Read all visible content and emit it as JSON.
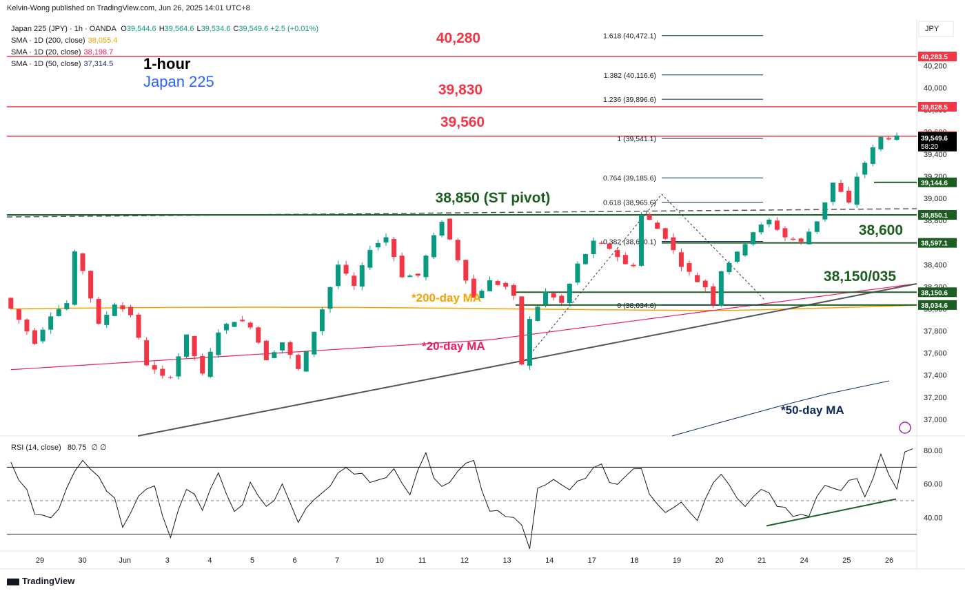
{
  "header": {
    "publisher": "Kelvin-Wong published on TradingView.com, Jun 26, 2025 14:01 UTC+8"
  },
  "legend": {
    "symbol": "Japan 225 (JPY) · 1h · OANDA",
    "ohlc": [
      {
        "k": "O",
        "v": "39,544.6"
      },
      {
        "k": "H",
        "v": "39,564.6"
      },
      {
        "k": "L",
        "v": "39,534.6"
      },
      {
        "k": "C",
        "v": "39,549.6"
      }
    ],
    "change": "+2.5 (+0.01%)",
    "sma": [
      {
        "label": "SMA · 1D (200, close)",
        "value": "38,055.4",
        "color": "#f4a300"
      },
      {
        "label": "SMA · 1D (20, close)",
        "value": "38,198.7",
        "color": "#e91e63"
      },
      {
        "label": "SMA · 1D (50, close)",
        "value": "37,314.5",
        "color": "#0d2b5e"
      }
    ]
  },
  "title": {
    "timeframe": "1-hour",
    "name": "Japan 225"
  },
  "currency": "JPY",
  "rsi_legend": {
    "label": "RSI (14, close)",
    "value": "80.75",
    "extra": "∅ ∅"
  },
  "brand": "TradingView",
  "colors": {
    "up": "#089981",
    "down": "#f23645",
    "red_level": "#f23645",
    "green_level": "#1b5e20",
    "ma200": "#f4a300",
    "ma20": "#e91e63",
    "ma50": "#0d2b5e",
    "fib": "#0d2b5e"
  },
  "chart_data": [
    {
      "type": "candlestick",
      "title": "Japan 225 (JPY) · 1h · OANDA",
      "x_tick_labels": [
        "29",
        "30",
        "Jun",
        "3",
        "4",
        "5",
        "6",
        "7",
        "10",
        "11",
        "12",
        "13",
        "14",
        "17",
        "18",
        "19",
        "20",
        "21",
        "24",
        "25",
        "26"
      ],
      "y_ticks": [
        37000,
        37200,
        37400,
        37600,
        37800,
        38000,
        38200,
        38400,
        38600,
        38800,
        39000,
        39200,
        39400,
        39600,
        39800,
        40000,
        40200
      ],
      "y_tick_labels": [
        "37,000",
        "37,200",
        "37,400",
        "37,600",
        "37,800",
        "38,000",
        "38,200",
        "38,400",
        "38,600",
        "38,800",
        "39,000",
        "39,200",
        "39,400",
        "39,600",
        "39,800",
        "40,000",
        "40,200"
      ],
      "ylim": [
        36850,
        40620
      ],
      "price_path_approx": [
        [
          0,
          38100
        ],
        [
          2,
          37900
        ],
        [
          4,
          37700
        ],
        [
          6,
          37950
        ],
        [
          8,
          38050
        ],
        [
          9,
          38500
        ],
        [
          10,
          38350
        ],
        [
          12,
          37850
        ],
        [
          14,
          38050
        ],
        [
          16,
          37950
        ],
        [
          18,
          37500
        ],
        [
          20,
          37380
        ],
        [
          21,
          37400
        ],
        [
          23,
          37750
        ],
        [
          25,
          37400
        ],
        [
          27,
          37800
        ],
        [
          29,
          37900
        ],
        [
          31,
          37850
        ],
        [
          33,
          37550
        ],
        [
          35,
          37700
        ],
        [
          37,
          37450
        ],
        [
          38,
          37600
        ],
        [
          40,
          38000
        ],
        [
          42,
          38400
        ],
        [
          44,
          38200
        ],
        [
          46,
          38550
        ],
        [
          48,
          38650
        ],
        [
          50,
          38300
        ],
        [
          52,
          38300
        ],
        [
          54,
          38650
        ],
        [
          55,
          38800
        ],
        [
          57,
          38450
        ],
        [
          59,
          38100
        ],
        [
          61,
          38250
        ],
        [
          63,
          38200
        ],
        [
          64,
          38100
        ],
        [
          65,
          37500
        ],
        [
          66,
          37900
        ],
        [
          68,
          38150
        ],
        [
          70,
          38050
        ],
        [
          72,
          38400
        ],
        [
          74,
          38600
        ],
        [
          76,
          38550
        ],
        [
          78,
          38400
        ],
        [
          79,
          38400
        ],
        [
          80,
          38850
        ],
        [
          81,
          38800
        ],
        [
          83,
          38650
        ],
        [
          85,
          38400
        ],
        [
          87,
          38250
        ],
        [
          88,
          38200
        ],
        [
          89,
          38050
        ],
        [
          90,
          38350
        ],
        [
          92,
          38500
        ],
        [
          94,
          38700
        ],
        [
          96,
          38800
        ],
        [
          98,
          38650
        ],
        [
          100,
          38600
        ],
        [
          102,
          38800
        ],
        [
          104,
          39140
        ],
        [
          105,
          39050
        ],
        [
          106,
          38950
        ],
        [
          107,
          39200
        ],
        [
          109,
          39450
        ],
        [
          110,
          39550
        ]
      ],
      "horizontal_levels": [
        {
          "label": "40,280",
          "value": 40283.5,
          "axis_label": "40,283.5",
          "color": "#f23645"
        },
        {
          "label": "39,830",
          "value": 39828.5,
          "axis_label": "39,828.5",
          "color": "#f23645"
        },
        {
          "label": "39,560",
          "value": 39562.0,
          "axis_label": "39,562.0",
          "color": "#f23645"
        },
        {
          "label": "38,850 (ST pivot)",
          "value": 38850.1,
          "axis_label": "38,850.1",
          "color": "#1b5e20"
        },
        {
          "label": "38,600",
          "value": 38597.1,
          "axis_label": "38,597.1",
          "color": "#1b5e20"
        },
        {
          "label": "38,150/035",
          "value": 38150.6,
          "axis_label": "38,150.6",
          "color": "#1b5e20"
        },
        {
          "label": "",
          "value": 38034.6,
          "axis_label": "38,034.6",
          "color": "#1b5e20"
        }
      ],
      "last_price": {
        "value": 39549.6,
        "axis_label": "39,549.6",
        "countdown": "58:20"
      },
      "minor_axis_label": {
        "value": 39144.6,
        "axis_label": "39,144.6"
      },
      "fib_levels": [
        {
          "label": "1.618 (40,472.1)",
          "value": 40472.1
        },
        {
          "label": "1.382 (40,116.6)",
          "value": 40116.6
        },
        {
          "label": "1.236 (39,896.6)",
          "value": 39896.6
        },
        {
          "label": "1 (39,541.1)",
          "value": 39541.1
        },
        {
          "label": "0.764 (39,185.6)",
          "value": 39185.6
        },
        {
          "label": "0.618 (38,965.6)",
          "value": 38965.6
        },
        {
          "label": "0.382 (38,610.1)",
          "value": 38610.1
        },
        {
          "label": "0 (38,034.6)",
          "value": 38034.6
        }
      ],
      "ma_labels": [
        {
          "label": "*200-day MA",
          "color": "#f4a300"
        },
        {
          "label": "*20-day MA",
          "color": "#e91e63"
        },
        {
          "label": "*50-day MA",
          "color": "#0d2b5e"
        }
      ]
    },
    {
      "type": "line",
      "title": "RSI (14, close)",
      "y_ticks": [
        40,
        60,
        80
      ],
      "y_tick_labels": [
        "40.00",
        "60.00",
        "80.00"
      ],
      "ylim": [
        20,
        87
      ],
      "bands": [
        30,
        50,
        70
      ],
      "rsi_path_approx": [
        [
          0,
          72
        ],
        [
          3,
          45
        ],
        [
          6,
          43
        ],
        [
          9,
          78
        ],
        [
          11,
          67
        ],
        [
          14,
          38
        ],
        [
          16,
          55
        ],
        [
          18,
          58
        ],
        [
          20,
          30
        ],
        [
          22,
          60
        ],
        [
          24,
          48
        ],
        [
          26,
          65
        ],
        [
          28,
          40
        ],
        [
          30,
          58
        ],
        [
          32,
          45
        ],
        [
          34,
          63
        ],
        [
          36,
          37
        ],
        [
          38,
          50
        ],
        [
          40,
          55
        ],
        [
          42,
          72
        ],
        [
          44,
          65
        ],
        [
          46,
          60
        ],
        [
          48,
          70
        ],
        [
          50,
          55
        ],
        [
          52,
          75
        ],
        [
          54,
          60
        ],
        [
          56,
          65
        ],
        [
          58,
          72
        ],
        [
          60,
          45
        ],
        [
          62,
          40
        ],
        [
          64,
          35
        ],
        [
          65,
          23
        ],
        [
          66,
          55
        ],
        [
          68,
          60
        ],
        [
          70,
          55
        ],
        [
          72,
          67
        ],
        [
          74,
          68
        ],
        [
          76,
          60
        ],
        [
          78,
          70
        ],
        [
          79,
          72
        ],
        [
          80,
          55
        ],
        [
          82,
          45
        ],
        [
          84,
          52
        ],
        [
          86,
          40
        ],
        [
          88,
          62
        ],
        [
          89,
          69
        ],
        [
          90,
          58
        ],
        [
          92,
          50
        ],
        [
          94,
          60
        ],
        [
          96,
          48
        ],
        [
          98,
          44
        ],
        [
          100,
          38
        ],
        [
          102,
          60
        ],
        [
          104,
          55
        ],
        [
          105,
          65
        ],
        [
          106,
          60
        ],
        [
          107,
          52
        ],
        [
          109,
          78
        ],
        [
          111,
          60
        ],
        [
          112,
          78
        ],
        [
          113,
          81
        ]
      ]
    }
  ]
}
